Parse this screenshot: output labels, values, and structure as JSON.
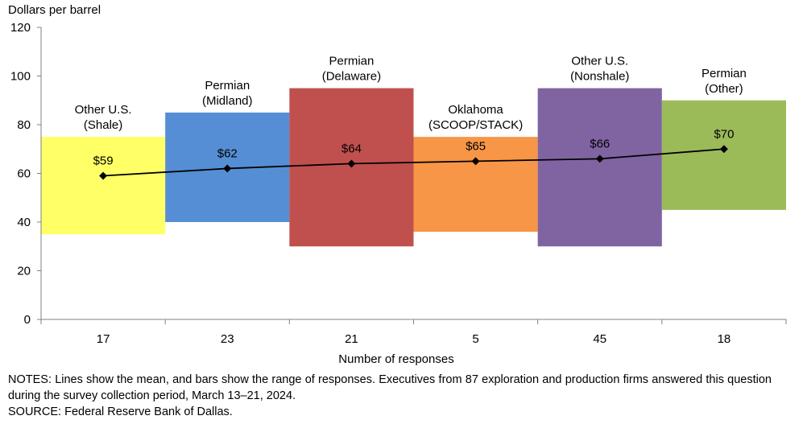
{
  "chart_data": {
    "type": "bar",
    "subtype": "floating-range-bars-with-mean-line",
    "ylabel": "Dollars per barrel",
    "xlabel": "Number of responses",
    "ylim": [
      0,
      120
    ],
    "yticks": [
      0,
      20,
      40,
      60,
      80,
      100,
      120
    ],
    "grid": false,
    "categories": [
      {
        "label_lines": [
          "Other U.S.",
          "(Shale)"
        ],
        "responses": "17",
        "low": 35,
        "high": 75,
        "mean": 59,
        "mean_label": "$59",
        "color": "#FFFF66"
      },
      {
        "label_lines": [
          "Permian",
          "(Midland)"
        ],
        "responses": "23",
        "low": 40,
        "high": 85,
        "mean": 62,
        "mean_label": "$62",
        "color": "#558ED5"
      },
      {
        "label_lines": [
          "Permian",
          "(Delaware)"
        ],
        "responses": "21",
        "low": 30,
        "high": 95,
        "mean": 64,
        "mean_label": "$64",
        "color": "#C0504D"
      },
      {
        "label_lines": [
          "Oklahoma",
          "(SCOOP/STACK)"
        ],
        "responses": "5",
        "low": 36,
        "high": 75,
        "mean": 65,
        "mean_label": "$65",
        "color": "#F79646"
      },
      {
        "label_lines": [
          "Other U.S.",
          "(Nonshale)"
        ],
        "responses": "45",
        "low": 30,
        "high": 95,
        "mean": 66,
        "mean_label": "$66",
        "color": "#8064A2"
      },
      {
        "label_lines": [
          "Permian",
          "(Other)"
        ],
        "responses": "18",
        "low": 45,
        "high": 90,
        "mean": 70,
        "mean_label": "$70",
        "color": "#9BBB59"
      }
    ],
    "line_color": "#000000"
  },
  "notes": {
    "line1": "NOTES: Lines show the mean, and bars show the range of responses. Executives from 87 exploration and production firms answered this question during the survey collection period, March 13–21, 2024.",
    "source": "SOURCE: Federal Reserve Bank of Dallas."
  }
}
